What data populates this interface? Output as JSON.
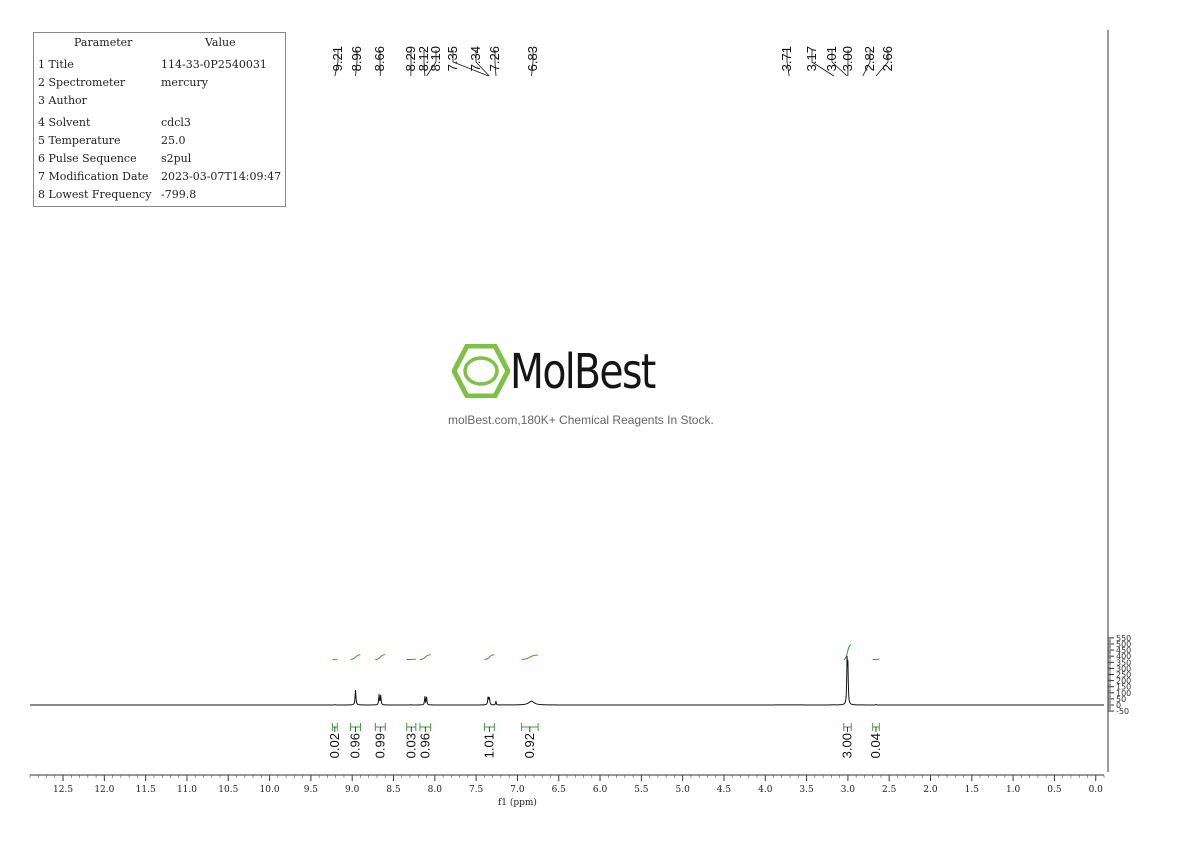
{
  "parameters": {
    "header_param": "Parameter",
    "header_value": "Value",
    "rows": [
      {
        "key": "1 Title",
        "value": "114-33-0P2540031"
      },
      {
        "key": "2 Spectrometer",
        "value": "mercury"
      },
      {
        "key": "3 Author",
        "value": ""
      },
      {
        "key": "4 Solvent",
        "value": "cdcl3"
      },
      {
        "key": "5 Temperature",
        "value": "25.0"
      },
      {
        "key": "6 Pulse Sequence",
        "value": "s2pul"
      },
      {
        "key": "7 Modification Date",
        "value": "2023-03-07T14:09:47"
      },
      {
        "key": "8 Lowest Frequency",
        "value": "-799.8"
      }
    ]
  },
  "watermark": {
    "name": "MolBest",
    "tagline": "molBest.com,180K+ Chemical Reagents In Stock.",
    "logo_color": "#7dc242"
  },
  "chart_data": {
    "type": "line",
    "xlabel": "f1 (ppm)",
    "xlim": [
      12.9,
      -0.1
    ],
    "ylim": [
      -55,
      560
    ],
    "x_reversed": true,
    "x_ticks": [
      "12.5",
      "12.0",
      "11.5",
      "11.0",
      "10.5",
      "10.0",
      "9.5",
      "9.0",
      "8.5",
      "8.0",
      "7.5",
      "7.0",
      "6.5",
      "6.0",
      "5.5",
      "5.0",
      "4.5",
      "4.0",
      "3.5",
      "3.0",
      "2.5",
      "2.0",
      "1.5",
      "1.0",
      "0.5",
      "0.0"
    ],
    "y_ticks": [
      "550",
      "500",
      "450",
      "400",
      "350",
      "300",
      "250",
      "200",
      "150",
      "100",
      "50",
      "0",
      "-50"
    ],
    "y_axis_side": "right",
    "peak_labels": [
      "9.21",
      "8.96",
      "8.66",
      "8.29",
      "8.12",
      "8.10",
      "7.35",
      "7.34",
      "7.26",
      "6.83",
      "3.71",
      "3.17",
      "3.01",
      "3.00",
      "2.82",
      "2.66"
    ],
    "peaks": [
      {
        "ppm": 9.21,
        "height": 2,
        "width": 0.01
      },
      {
        "ppm": 8.96,
        "height": 123,
        "width": 0.006
      },
      {
        "ppm": 8.675,
        "height": 84,
        "width": 0.005
      },
      {
        "ppm": 8.655,
        "height": 79,
        "width": 0.005
      },
      {
        "ppm": 8.29,
        "height": 1.5,
        "width": 0.01
      },
      {
        "ppm": 8.12,
        "height": 69,
        "width": 0.005
      },
      {
        "ppm": 8.1,
        "height": 63,
        "width": 0.005
      },
      {
        "ppm": 7.355,
        "height": 61,
        "width": 0.006
      },
      {
        "ppm": 7.34,
        "height": 55,
        "width": 0.006
      },
      {
        "ppm": 7.26,
        "height": 32,
        "width": 0.004
      },
      {
        "ppm": 6.83,
        "height": 31,
        "width": 0.04
      },
      {
        "ppm": 3.71,
        "height": 1.2,
        "width": 0.15
      },
      {
        "ppm": 3.17,
        "height": 1,
        "width": 0.02
      },
      {
        "ppm": 3.01,
        "height": 340,
        "width": 0.005
      },
      {
        "ppm": 3.0,
        "height": 300,
        "width": 0.005
      },
      {
        "ppm": 2.82,
        "height": 1,
        "width": 0.01
      },
      {
        "ppm": 2.66,
        "height": 4,
        "width": 0.006
      }
    ],
    "integrals": [
      {
        "label": "0.02",
        "from": 9.24,
        "to": 9.18,
        "bottom": 373,
        "top": 375
      },
      {
        "label": "0.96",
        "from": 9.02,
        "to": 8.9,
        "bottom": 373,
        "top": 412
      },
      {
        "label": "0.99",
        "from": 8.72,
        "to": 8.6,
        "bottom": 373,
        "top": 413
      },
      {
        "label": "0.03",
        "from": 8.34,
        "to": 8.23,
        "bottom": 373,
        "top": 375
      },
      {
        "label": "0.96",
        "from": 8.18,
        "to": 8.05,
        "bottom": 373,
        "top": 412
      },
      {
        "label": "1.01",
        "from": 7.4,
        "to": 7.28,
        "bottom": 373,
        "top": 412
      },
      {
        "label": "0.92",
        "from": 6.95,
        "to": 6.75,
        "bottom": 373,
        "top": 410
      },
      {
        "label": "3.00",
        "from": 3.05,
        "to": 2.96,
        "bottom": 373,
        "top": 494
      },
      {
        "label": "0.04",
        "from": 2.7,
        "to": 2.62,
        "bottom": 373,
        "top": 375
      }
    ],
    "colors": {
      "trace": "#111111",
      "integral": "#3a9c3a"
    }
  }
}
